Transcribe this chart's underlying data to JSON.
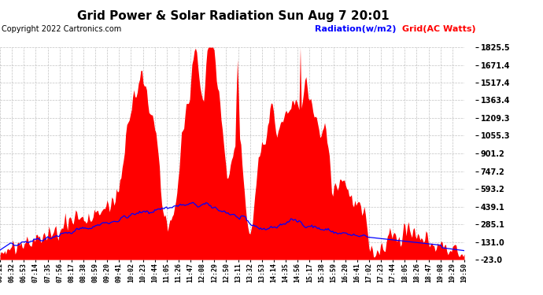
{
  "title": "Grid Power & Solar Radiation Sun Aug 7 20:01",
  "copyright": "Copyright 2022 Cartronics.com",
  "legend_radiation": "Radiation(w/m2)",
  "legend_grid": "Grid(AC Watts)",
  "yticks": [
    -23.0,
    131.0,
    285.1,
    439.1,
    593.2,
    747.2,
    901.2,
    1055.3,
    1209.3,
    1363.4,
    1517.4,
    1671.4,
    1825.5
  ],
  "ymin": -23.0,
  "ymax": 1825.5,
  "background_color": "#ffffff",
  "plot_bg_color": "#ffffff",
  "grid_color": "#bbbbbb",
  "radiation_color": "#0000ff",
  "solar_fill_color": "#ff0000",
  "xtick_labels": [
    "06:11",
    "06:32",
    "06:53",
    "07:14",
    "07:35",
    "07:56",
    "08:17",
    "08:38",
    "08:59",
    "09:20",
    "09:41",
    "10:02",
    "10:23",
    "10:44",
    "11:05",
    "11:26",
    "11:47",
    "12:08",
    "12:29",
    "12:50",
    "13:11",
    "13:32",
    "13:53",
    "14:14",
    "14:35",
    "14:56",
    "15:17",
    "15:38",
    "15:59",
    "16:20",
    "16:41",
    "17:02",
    "17:23",
    "17:44",
    "18:05",
    "18:26",
    "18:47",
    "19:08",
    "19:29",
    "19:50"
  ],
  "n_points": 400
}
